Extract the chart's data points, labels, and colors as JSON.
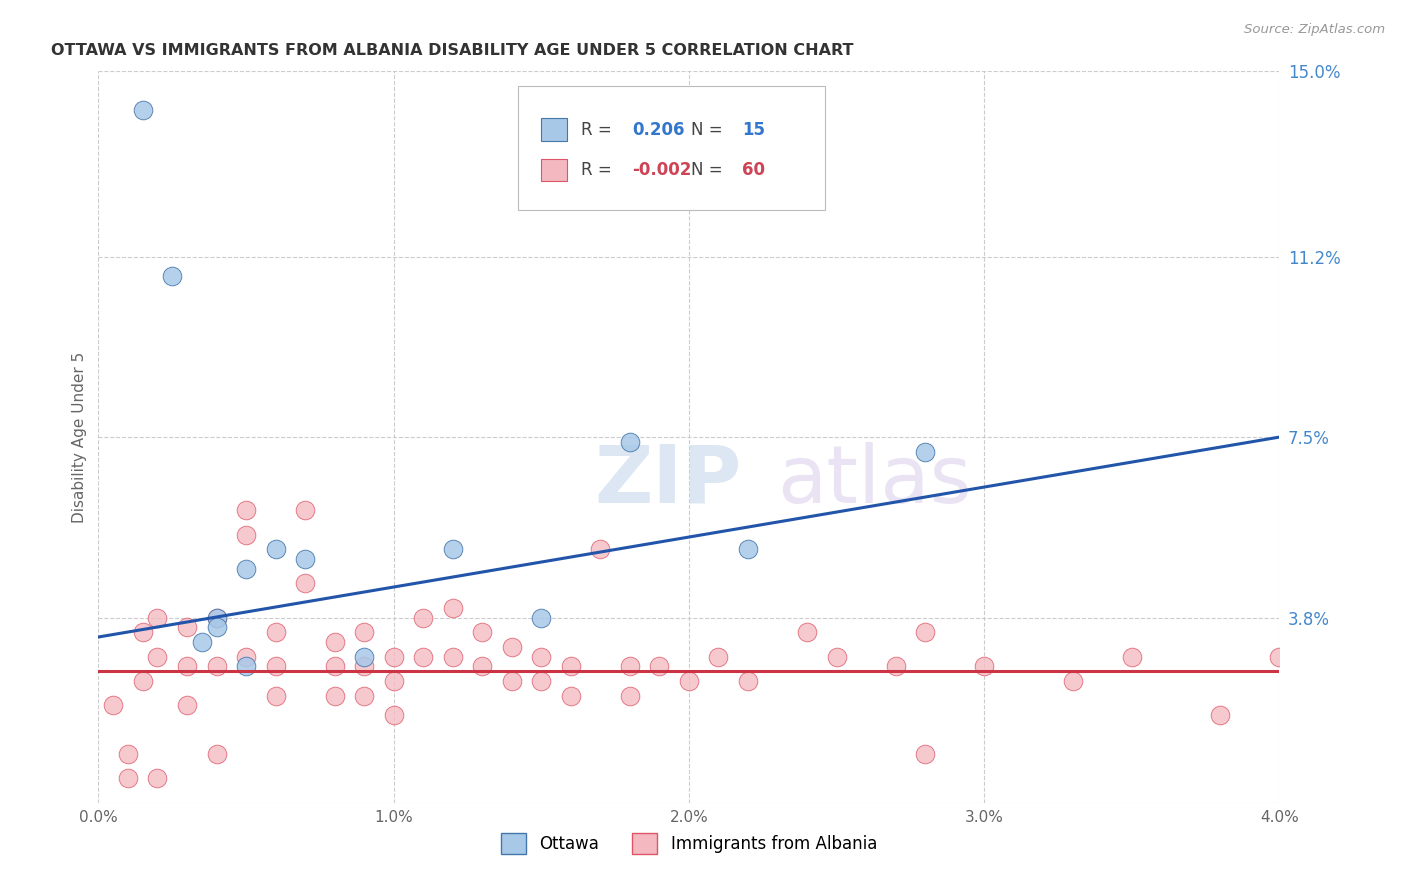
{
  "title": "OTTAWA VS IMMIGRANTS FROM ALBANIA DISABILITY AGE UNDER 5 CORRELATION CHART",
  "source": "Source: ZipAtlas.com",
  "ylabel": "Disability Age Under 5",
  "x_min": 0.0,
  "x_max": 0.04,
  "y_min": 0.0,
  "y_max": 0.15,
  "y_ticks": [
    0.0,
    0.038,
    0.075,
    0.112,
    0.15
  ],
  "y_tick_labels": [
    "",
    "3.8%",
    "7.5%",
    "11.2%",
    "15.0%"
  ],
  "x_ticks": [
    0.0,
    0.01,
    0.02,
    0.03,
    0.04
  ],
  "x_tick_labels": [
    "0.0%",
    "1.0%",
    "2.0%",
    "3.0%",
    "4.0%"
  ],
  "ottawa_color": "#a8c8e8",
  "albania_color": "#f4b8c0",
  "ottawa_edge_color": "#4477aa",
  "albania_edge_color": "#dd5566",
  "trend_ottawa_color": "#2255aa",
  "trend_albania_color": "#cc3344",
  "R_ottawa": 0.206,
  "N_ottawa": 15,
  "R_albania": -0.002,
  "N_albania": 60,
  "legend_label_ottawa": "Ottawa",
  "legend_label_albania": "Immigrants from Albania",
  "watermark_zip": "ZIP",
  "watermark_atlas": "atlas",
  "background_color": "#ffffff",
  "grid_color": "#cccccc",
  "ottawa_points_x": [
    0.0015,
    0.0025,
    0.0035,
    0.004,
    0.004,
    0.005,
    0.005,
    0.006,
    0.007,
    0.009,
    0.012,
    0.015,
    0.018,
    0.022,
    0.028
  ],
  "ottawa_points_y": [
    0.142,
    0.108,
    0.033,
    0.038,
    0.036,
    0.048,
    0.028,
    0.052,
    0.05,
    0.03,
    0.052,
    0.038,
    0.074,
    0.052,
    0.072
  ],
  "albania_points_x": [
    0.0005,
    0.001,
    0.001,
    0.0015,
    0.0015,
    0.002,
    0.002,
    0.002,
    0.003,
    0.003,
    0.003,
    0.004,
    0.004,
    0.004,
    0.005,
    0.005,
    0.005,
    0.006,
    0.006,
    0.006,
    0.007,
    0.007,
    0.008,
    0.008,
    0.008,
    0.009,
    0.009,
    0.009,
    0.01,
    0.01,
    0.01,
    0.011,
    0.011,
    0.012,
    0.012,
    0.013,
    0.013,
    0.014,
    0.014,
    0.015,
    0.015,
    0.016,
    0.016,
    0.017,
    0.018,
    0.018,
    0.019,
    0.02,
    0.021,
    0.022,
    0.024,
    0.025,
    0.027,
    0.028,
    0.03,
    0.033,
    0.035,
    0.038,
    0.04,
    0.028
  ],
  "albania_points_y": [
    0.02,
    0.005,
    0.01,
    0.035,
    0.025,
    0.038,
    0.03,
    0.005,
    0.036,
    0.028,
    0.02,
    0.038,
    0.028,
    0.01,
    0.06,
    0.055,
    0.03,
    0.035,
    0.028,
    0.022,
    0.06,
    0.045,
    0.033,
    0.028,
    0.022,
    0.035,
    0.028,
    0.022,
    0.03,
    0.025,
    0.018,
    0.038,
    0.03,
    0.04,
    0.03,
    0.035,
    0.028,
    0.032,
    0.025,
    0.03,
    0.025,
    0.028,
    0.022,
    0.052,
    0.028,
    0.022,
    0.028,
    0.025,
    0.03,
    0.025,
    0.035,
    0.03,
    0.028,
    0.035,
    0.028,
    0.025,
    0.03,
    0.018,
    0.03,
    0.01
  ],
  "trend_ottawa_x0": 0.0,
  "trend_ottawa_y0": 0.034,
  "trend_ottawa_x1": 0.04,
  "trend_ottawa_y1": 0.075,
  "trend_albania_y": 0.027
}
